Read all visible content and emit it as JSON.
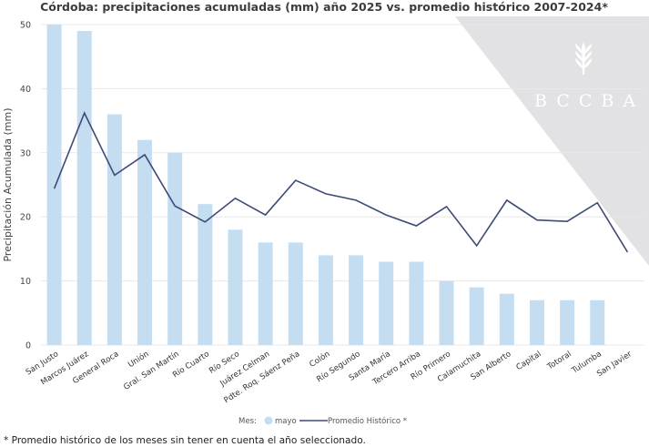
{
  "chart_data": {
    "type": "bar+line",
    "title": "Córdoba: precipitaciones acumuladas (mm) año 2025 vs. promedio histórico 2007-2024*",
    "xlabel": "",
    "ylabel": "Precipitación Acumulada (mm)",
    "ylim": [
      0,
      50
    ],
    "yticks": [
      0,
      10,
      20,
      30,
      40,
      50
    ],
    "grid": true,
    "categories": [
      "San Justo",
      "Marcos Juárez",
      "General Roca",
      "Unión",
      "Gral. San Martín",
      "Río Cuarto",
      "Río Seco",
      "Juárez Celman",
      "Pdte. Roq. Sáenz Peña",
      "Colón",
      "Río Segundo",
      "Santa María",
      "Tercero Arriba",
      "Río Primero",
      "Calamuchita",
      "San Alberto",
      "Capital",
      "Totoral",
      "Tulumba",
      "San Javier"
    ],
    "series": [
      {
        "name": "mayo",
        "type": "bar",
        "color": "#c5ddf1",
        "values": [
          50,
          49,
          36,
          32,
          30,
          22,
          18,
          16,
          16,
          14,
          14,
          13,
          13,
          10,
          9,
          8,
          7,
          7,
          7,
          0
        ]
      },
      {
        "name": "Promedio Histórico *",
        "type": "line",
        "color": "#3e4a78",
        "values": [
          24.4,
          36.2,
          26.5,
          29.7,
          21.7,
          19.2,
          22.9,
          20.3,
          25.7,
          23.6,
          22.6,
          20.3,
          18.6,
          21.6,
          15.5,
          22.6,
          19.5,
          19.3,
          22.2,
          14.5
        ]
      }
    ],
    "legend": {
      "position": "bottom-center",
      "title": "Mes:",
      "items": [
        "mayo",
        "Promedio Histórico *"
      ]
    }
  },
  "watermark": {
    "text": "BCCBA",
    "icon": "wheat-icon"
  },
  "footnote": "* Promedio histórico de los meses sin tener en cuenta el año seleccionado."
}
